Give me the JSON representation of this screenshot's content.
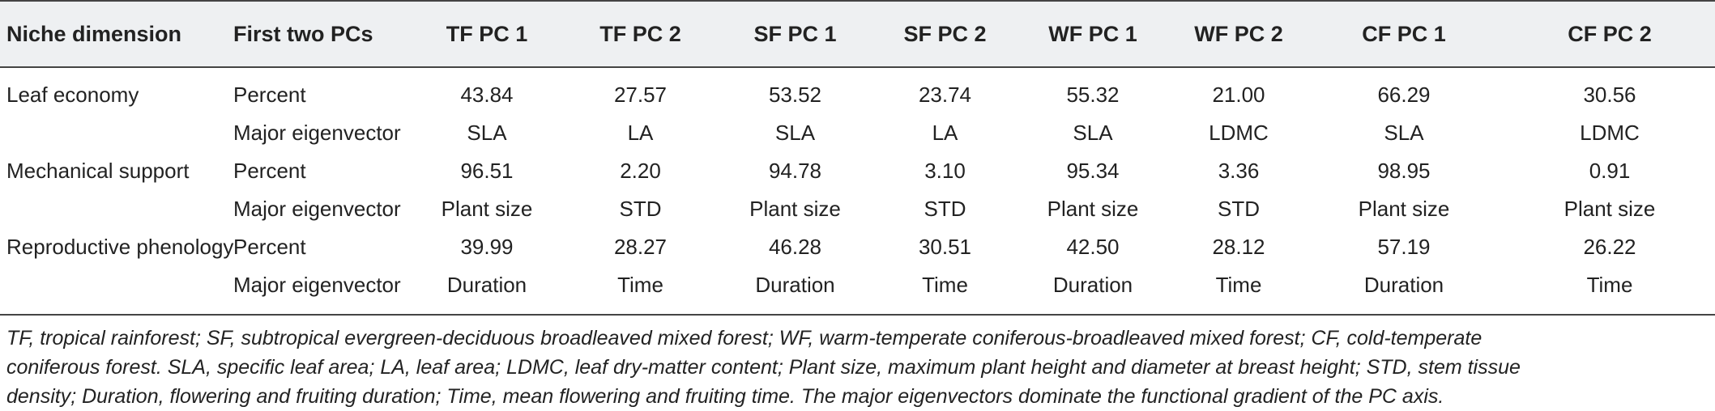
{
  "table": {
    "headers": [
      "Niche dimension",
      "First two PCs",
      "TF PC 1",
      "TF PC 2",
      "SF PC 1",
      "SF PC 2",
      "WF PC 1",
      "WF PC 2",
      "CF PC 1",
      "CF PC 2"
    ],
    "rows": [
      [
        "Leaf economy",
        "Percent",
        "43.84",
        "27.57",
        "53.52",
        "23.74",
        "55.32",
        "21.00",
        "66.29",
        "30.56"
      ],
      [
        "",
        "Major eigenvector",
        "SLA",
        "LA",
        "SLA",
        "LA",
        "SLA",
        "LDMC",
        "SLA",
        "LDMC"
      ],
      [
        "Mechanical support",
        "Percent",
        "96.51",
        "2.20",
        "94.78",
        "3.10",
        "95.34",
        "3.36",
        "98.95",
        "0.91"
      ],
      [
        "",
        "Major eigenvector",
        "Plant size",
        "STD",
        "Plant size",
        "STD",
        "Plant size",
        "STD",
        "Plant size",
        "Plant size"
      ],
      [
        "Reproductive phenology",
        "Percent",
        "39.99",
        "28.27",
        "46.28",
        "30.51",
        "42.50",
        "28.12",
        "57.19",
        "26.22"
      ],
      [
        "",
        "Major eigenvector",
        "Duration",
        "Time",
        "Duration",
        "Time",
        "Duration",
        "Time",
        "Duration",
        "Time"
      ]
    ]
  },
  "footnote": {
    "line1": "TF, tropical rainforest; SF, subtropical evergreen-deciduous broadleaved mixed forest; WF, warm-temperate coniferous-broadleaved mixed forest; CF, cold-temperate",
    "line2": "coniferous forest. SLA, specific leaf area; LA, leaf area; LDMC, leaf dry-matter content; Plant size, maximum plant height and diameter at breast height; STD, stem tissue",
    "line3": "density; Duration, flowering and fruiting duration; Time, mean flowering and fruiting time. The major eigenvectors dominate the functional gradient of the PC axis."
  }
}
